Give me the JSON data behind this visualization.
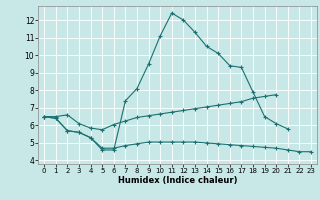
{
  "xlabel": "Humidex (Indice chaleur)",
  "xlim": [
    -0.5,
    23.5
  ],
  "ylim": [
    3.8,
    12.8
  ],
  "yticks": [
    4,
    5,
    6,
    7,
    8,
    9,
    10,
    11,
    12
  ],
  "xticks": [
    0,
    1,
    2,
    3,
    4,
    5,
    6,
    7,
    8,
    9,
    10,
    11,
    12,
    13,
    14,
    15,
    16,
    17,
    18,
    19,
    20,
    21,
    22,
    23
  ],
  "bg_color": "#c8e8e8",
  "line_color": "#1a7070",
  "grid_color": "#ffffff",
  "line1_y": [
    6.5,
    6.4,
    5.7,
    5.6,
    5.3,
    4.6,
    4.6,
    7.4,
    8.1,
    9.5,
    11.1,
    12.4,
    12.0,
    11.3,
    10.5,
    10.1,
    9.4,
    9.3,
    7.9,
    6.5,
    6.1,
    5.8,
    null,
    null
  ],
  "line2_y": [
    6.5,
    6.5,
    6.6,
    6.1,
    5.85,
    5.75,
    6.05,
    6.25,
    6.45,
    6.55,
    6.65,
    6.75,
    6.85,
    6.95,
    7.05,
    7.15,
    7.25,
    7.35,
    7.55,
    7.65,
    7.75,
    null,
    null,
    null
  ],
  "line3_y": [
    6.5,
    6.4,
    5.7,
    5.6,
    5.3,
    4.7,
    4.7,
    4.85,
    4.95,
    5.05,
    5.05,
    5.05,
    5.05,
    5.05,
    5.0,
    4.95,
    4.9,
    4.85,
    4.8,
    4.75,
    4.7,
    4.6,
    4.5,
    4.5
  ]
}
